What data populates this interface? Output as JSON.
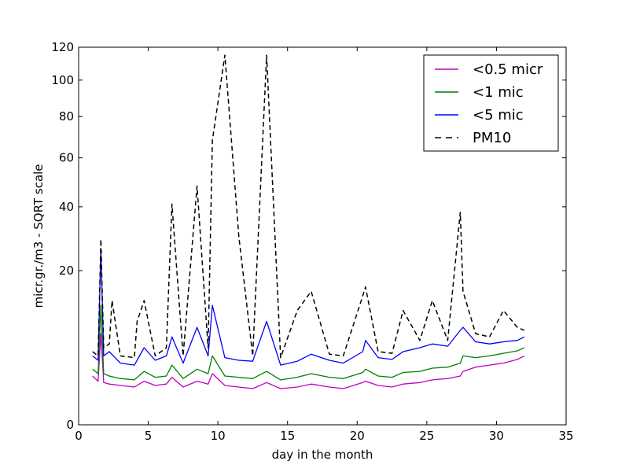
{
  "chart_data": {
    "type": "line",
    "title": "",
    "xlabel": "day in the month",
    "ylabel": "micr.gr./m3 - SQRT scale",
    "yscale": "sqrt",
    "xlim": [
      0,
      35
    ],
    "ylim": [
      0,
      120
    ],
    "xticks": [
      0,
      5,
      10,
      15,
      20,
      25,
      30,
      35
    ],
    "xtick_labels": [
      "0",
      "5",
      "10",
      "15",
      "20",
      "25",
      "30",
      "35"
    ],
    "yticks": [
      0,
      20,
      40,
      60,
      80,
      100,
      120
    ],
    "ytick_labels": [
      "0",
      "20",
      "40",
      "60",
      "80",
      "100",
      "120"
    ],
    "grid": false,
    "legend_position": "top-right",
    "series": [
      {
        "name": "<0.5 micr",
        "color": "#bf00bf",
        "style": "solid",
        "x": [
          1.0,
          1.4,
          1.6,
          1.8,
          2.2,
          3.0,
          4.0,
          4.7,
          5.5,
          6.3,
          6.7,
          7.5,
          8.5,
          9.3,
          9.6,
          10.5,
          11.5,
          12.5,
          13.5,
          14.5,
          15.7,
          16.7,
          18.0,
          19.0,
          20.4,
          20.6,
          21.5,
          22.5,
          23.3,
          24.5,
          25.4,
          26.5,
          27.4,
          27.6,
          28.5,
          29.5,
          30.5,
          31.5,
          32.0
        ],
        "y": [
          2.0,
          1.6,
          7.0,
          1.5,
          1.4,
          1.3,
          1.2,
          1.6,
          1.3,
          1.4,
          1.9,
          1.2,
          1.6,
          1.4,
          2.2,
          1.3,
          1.2,
          1.1,
          1.5,
          1.1,
          1.2,
          1.4,
          1.2,
          1.1,
          1.5,
          1.6,
          1.3,
          1.2,
          1.4,
          1.5,
          1.7,
          1.8,
          2.0,
          2.4,
          2.8,
          3.0,
          3.2,
          3.6,
          4.0
        ]
      },
      {
        "name": "<1 mic",
        "color": "#008000",
        "style": "solid",
        "x": [
          1.0,
          1.4,
          1.6,
          1.8,
          2.2,
          3.0,
          4.0,
          4.7,
          5.5,
          6.3,
          6.7,
          7.5,
          8.5,
          9.3,
          9.6,
          10.5,
          11.5,
          12.5,
          13.5,
          14.5,
          15.7,
          16.7,
          18.0,
          19.0,
          20.4,
          20.6,
          21.5,
          22.5,
          23.3,
          24.5,
          25.4,
          26.5,
          27.4,
          27.6,
          28.5,
          29.5,
          30.5,
          31.5,
          32.0
        ],
        "y": [
          2.6,
          2.2,
          12.0,
          2.2,
          2.0,
          1.8,
          1.7,
          2.4,
          1.9,
          2.0,
          3.0,
          1.8,
          2.6,
          2.2,
          4.0,
          2.0,
          1.9,
          1.8,
          2.4,
          1.7,
          1.9,
          2.2,
          1.9,
          1.8,
          2.3,
          2.6,
          2.0,
          1.9,
          2.3,
          2.4,
          2.7,
          2.8,
          3.2,
          4.0,
          3.8,
          4.0,
          4.3,
          4.6,
          5.0
        ]
      },
      {
        "name": "<5 mic",
        "color": "#0000ff",
        "style": "solid",
        "x": [
          1.0,
          1.4,
          1.6,
          1.8,
          2.2,
          3.0,
          4.0,
          4.7,
          5.5,
          6.3,
          6.7,
          7.5,
          8.5,
          9.3,
          9.6,
          10.5,
          11.5,
          12.5,
          13.5,
          14.5,
          15.7,
          16.7,
          18.0,
          19.0,
          20.4,
          20.6,
          21.5,
          22.5,
          23.3,
          24.5,
          25.4,
          26.5,
          27.4,
          27.6,
          28.5,
          29.5,
          30.5,
          31.5,
          32.0
        ],
        "y": [
          4.0,
          3.5,
          26.0,
          4.0,
          4.5,
          3.2,
          3.0,
          5.0,
          3.5,
          4.0,
          6.5,
          3.2,
          8.0,
          4.0,
          12.0,
          3.8,
          3.5,
          3.4,
          9.0,
          3.0,
          3.4,
          4.2,
          3.5,
          3.2,
          4.5,
          6.0,
          3.8,
          3.6,
          4.5,
          5.0,
          5.5,
          5.2,
          7.5,
          8.0,
          5.8,
          5.5,
          5.8,
          6.0,
          6.5
        ]
      },
      {
        "name": "PM10",
        "color": "#000000",
        "style": "dashed",
        "x": [
          1.0,
          1.4,
          1.6,
          1.8,
          2.2,
          2.4,
          3.0,
          4.0,
          4.2,
          4.7,
          5.5,
          6.3,
          6.7,
          7.5,
          8.5,
          9.3,
          9.6,
          10.5,
          11.5,
          12.5,
          13.5,
          14.5,
          15.7,
          16.7,
          18.0,
          19.0,
          20.4,
          20.6,
          21.5,
          22.5,
          23.3,
          24.5,
          25.4,
          26.5,
          27.4,
          27.6,
          28.5,
          29.5,
          30.5,
          31.5,
          32.0
        ],
        "y": [
          4.5,
          4.0,
          29.0,
          5.0,
          5.5,
          13.0,
          4.0,
          3.8,
          9.0,
          13.0,
          4.0,
          5.0,
          41.0,
          4.0,
          48.0,
          5.0,
          68.0,
          115.0,
          30.0,
          4.0,
          115.0,
          3.8,
          11.0,
          15.0,
          4.2,
          4.0,
          14.0,
          16.0,
          4.5,
          4.3,
          11.0,
          6.0,
          13.0,
          6.0,
          38.0,
          15.0,
          7.0,
          6.5,
          11.0,
          8.0,
          7.5
        ]
      }
    ]
  }
}
